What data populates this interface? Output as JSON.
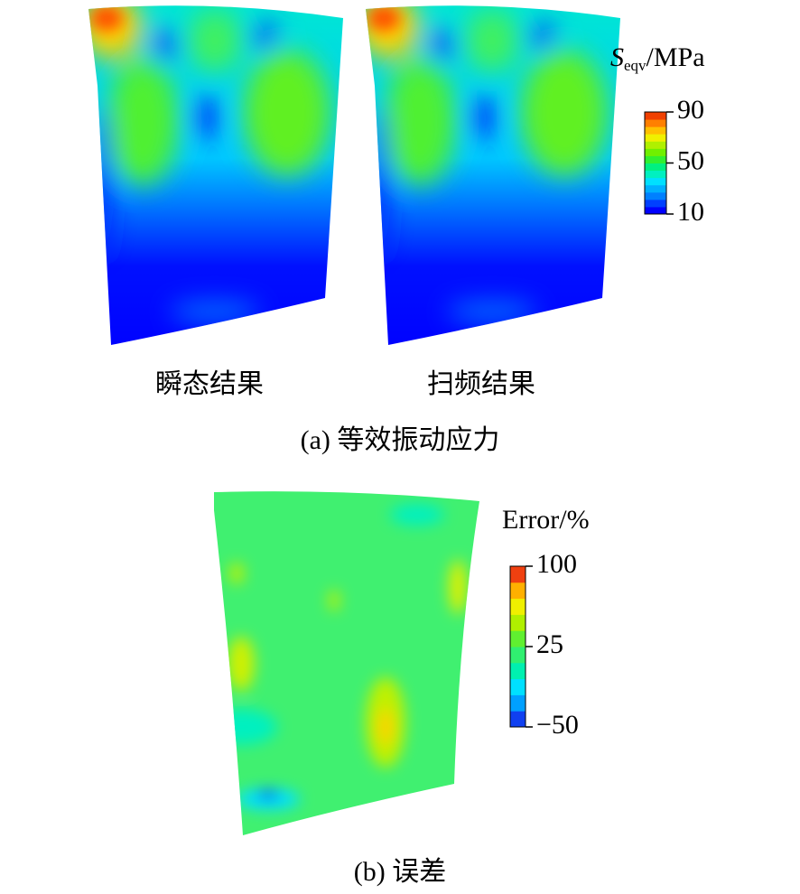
{
  "panel_a": {
    "left_label": "瞬态结果",
    "right_label": "扫频结果",
    "caption": "(a) 等效振动应力",
    "colorbar": {
      "title_symbol": "S",
      "title_subscript": "eqv",
      "title_unit": "/MPa",
      "lim": [
        10,
        90
      ],
      "ticks": [
        10,
        50,
        90
      ],
      "colors": [
        "#0000ff",
        "#0040ff",
        "#0080ff",
        "#00b0ff",
        "#00e0ff",
        "#00f0c0",
        "#00f080",
        "#30f030",
        "#70f000",
        "#b0f000",
        "#f0f000",
        "#ffc000",
        "#ff8000",
        "#f04000"
      ]
    }
  },
  "panel_b": {
    "caption": "(b) 误差",
    "colorbar": {
      "title": "Error/%",
      "lim": [
        -50,
        100
      ],
      "ticks": [
        {
          "value": -50,
          "label": "−50"
        },
        25,
        100
      ],
      "colors": [
        "#1040f0",
        "#00a0ff",
        "#00e0ff",
        "#00f0b0",
        "#30f070",
        "#60f030",
        "#b0f000",
        "#f0f000",
        "#ffb000",
        "#f04010"
      ]
    }
  }
}
